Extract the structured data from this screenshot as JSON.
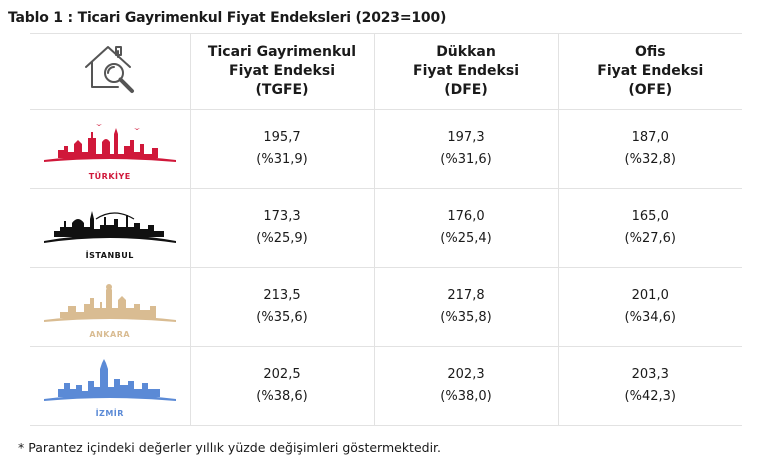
{
  "title": "Tablo 1 : Ticari Gayrimenkul Fiyat Endeksleri (2023=100)",
  "header": {
    "icon": "house-search-icon",
    "columns": [
      {
        "line1": "Ticari Gayrimenkul",
        "line2": "Fiyat Endeksi",
        "line3": "(TGFE)"
      },
      {
        "line1": "Dükkan",
        "line2": "Fiyat Endeksi",
        "line3": "(DFE)"
      },
      {
        "line1": "Ofis",
        "line2": "Fiyat Endeksi",
        "line3": "(OFE)"
      }
    ]
  },
  "rows": [
    {
      "city": "TÜRKİYE",
      "color": "#d0183a",
      "cells": [
        {
          "value": "195,7",
          "change": "(%31,9)"
        },
        {
          "value": "197,3",
          "change": "(%31,6)"
        },
        {
          "value": "187,0",
          "change": "(%32,8)"
        }
      ]
    },
    {
      "city": "İSTANBUL",
      "color": "#111111",
      "cells": [
        {
          "value": "173,3",
          "change": "(%25,9)"
        },
        {
          "value": "176,0",
          "change": "(%25,4)"
        },
        {
          "value": "165,0",
          "change": "(%27,6)"
        }
      ]
    },
    {
      "city": "ANKARA",
      "color": "#d9bc92",
      "cells": [
        {
          "value": "213,5",
          "change": "(%35,6)"
        },
        {
          "value": "217,8",
          "change": "(%35,8)"
        },
        {
          "value": "201,0",
          "change": "(%34,6)"
        }
      ]
    },
    {
      "city": "İZMİR",
      "color": "#5b8ad6",
      "cells": [
        {
          "value": "202,5",
          "change": "(%38,6)"
        },
        {
          "value": "202,3",
          "change": "(%38,0)"
        },
        {
          "value": "203,3",
          "change": "(%42,3)"
        }
      ]
    }
  ],
  "footnote": "* Parantez içindeki değerler yıllık yüzde değişimleri göstermektedir."
}
